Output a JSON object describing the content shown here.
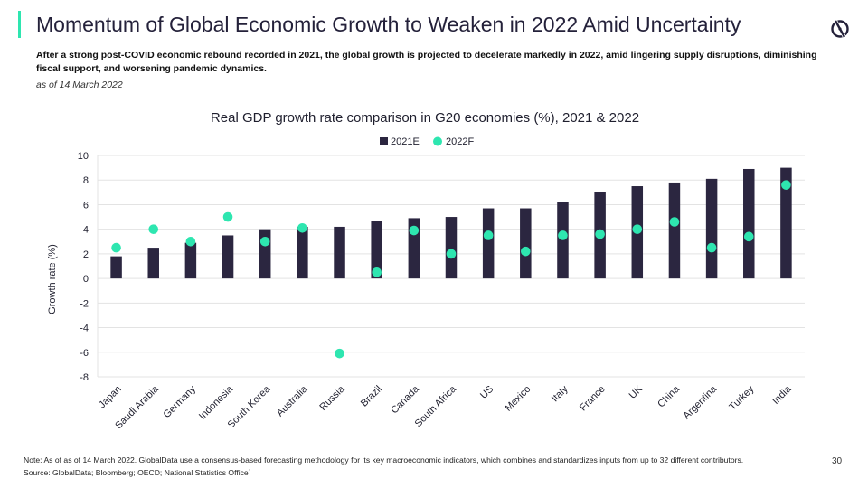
{
  "header": {
    "title": "Momentum of Global Economic Growth to Weaken in 2022 Amid Uncertainty",
    "subtitle": "After a strong post-COVID economic rebound recorded in 2021, the global growth is projected to decelerate markedly in 2022, amid lingering supply disruptions, diminishing fiscal support, and worsening pandemic dynamics.",
    "as_of": "as of 14 March 2022"
  },
  "footer": {
    "note": "Note: As of as of 14 March 2022. GlobalData use a consensus-based forecasting methodology for its key macroeconomic indicators, which combines and standardizes inputs from up to 32 different contributors.",
    "source": "Source: GlobalData; Bloomberg; OECD; National Statistics Office`",
    "page_number": "30"
  },
  "colors": {
    "accent": "#2ee6b0",
    "bar": "#2b2640",
    "dot": "#2ee6b0",
    "grid": "#e3e3e3"
  },
  "chart_data": {
    "type": "bar",
    "title": "Real GDP growth rate comparison in G20 economies (%), 2021 & 2022",
    "ylabel": "Growth rate (%)",
    "xlabel": "",
    "ylim": [
      -8,
      10
    ],
    "yticks": [
      10,
      8,
      6,
      4,
      2,
      0,
      -2,
      -4,
      -6,
      -8
    ],
    "grid": true,
    "legend_position": "top-center",
    "categories": [
      "Japan",
      "Saudi Arabia",
      "Germany",
      "Indonesia",
      "South Korea",
      "Australia",
      "Russia",
      "Brazil",
      "Canada",
      "South Africa",
      "US",
      "Mexico",
      "Italy",
      "France",
      "UK",
      "China",
      "Argentina",
      "Turkey",
      "India"
    ],
    "series": [
      {
        "name": "2021E",
        "kind": "bar",
        "values": [
          1.8,
          2.5,
          2.9,
          3.5,
          4.0,
          4.2,
          4.2,
          4.7,
          4.9,
          5.0,
          5.7,
          5.7,
          6.2,
          7.0,
          7.5,
          7.8,
          8.1,
          8.9,
          9.0
        ]
      },
      {
        "name": "2022F",
        "kind": "dot",
        "values": [
          2.5,
          4.0,
          3.0,
          5.0,
          3.0,
          4.1,
          -6.1,
          0.5,
          3.9,
          2.0,
          3.5,
          2.2,
          3.5,
          3.6,
          4.0,
          4.6,
          2.5,
          3.4,
          7.6
        ]
      }
    ]
  }
}
